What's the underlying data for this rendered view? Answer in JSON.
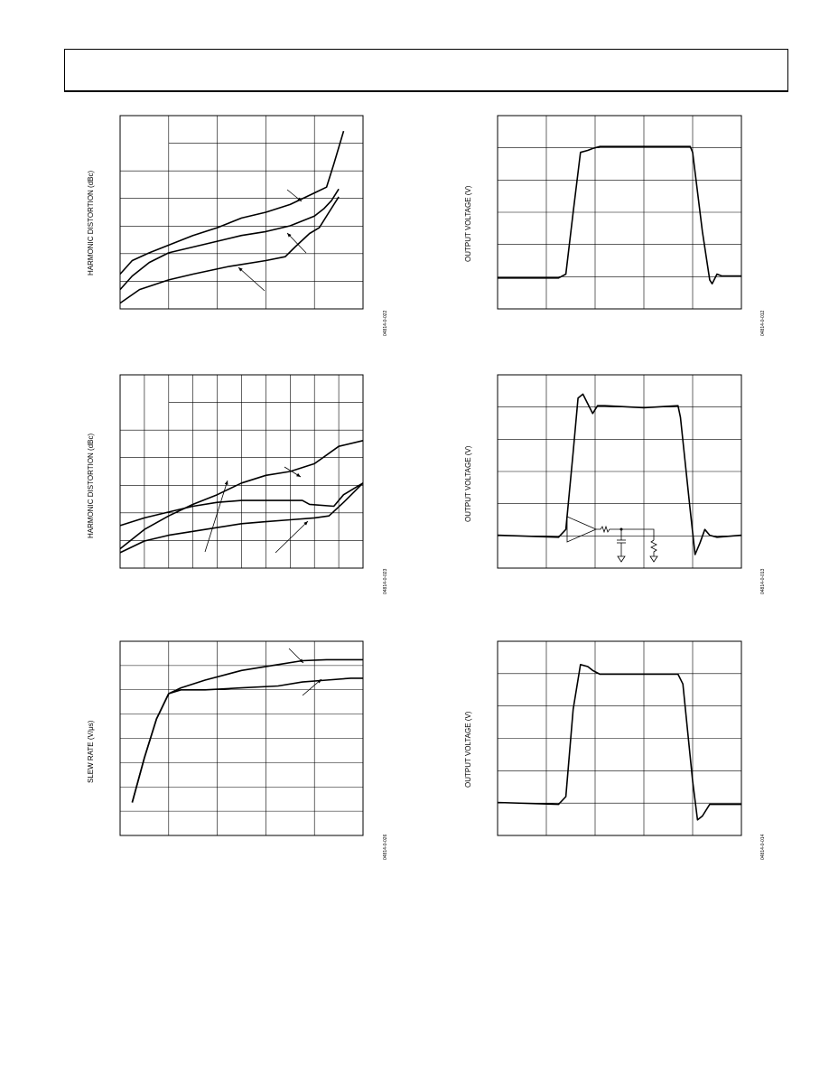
{
  "page": {
    "header": ""
  },
  "chart_data": [
    {
      "id": "harmonic-distortion-1",
      "type": "line",
      "ylabel": "HARMONIC DISTORTION (dBc)",
      "figure_id": "04814-0-022",
      "grid": true,
      "series": [
        {
          "values": [
            [
              0.0,
              0.82
            ],
            [
              0.05,
              0.75
            ],
            [
              0.12,
              0.71
            ],
            [
              0.2,
              0.67
            ],
            [
              0.3,
              0.62
            ],
            [
              0.4,
              0.58
            ],
            [
              0.5,
              0.53
            ],
            [
              0.6,
              0.5
            ],
            [
              0.7,
              0.46
            ],
            [
              0.8,
              0.4
            ],
            [
              0.85,
              0.37
            ],
            [
              0.88,
              0.25
            ],
            [
              0.92,
              0.08
            ]
          ]
        },
        {
          "values": [
            [
              0.0,
              0.9
            ],
            [
              0.05,
              0.83
            ],
            [
              0.12,
              0.76
            ],
            [
              0.2,
              0.71
            ],
            [
              0.3,
              0.68
            ],
            [
              0.4,
              0.65
            ],
            [
              0.5,
              0.62
            ],
            [
              0.6,
              0.6
            ],
            [
              0.7,
              0.57
            ],
            [
              0.8,
              0.52
            ],
            [
              0.84,
              0.48
            ],
            [
              0.87,
              0.44
            ],
            [
              0.9,
              0.38
            ]
          ]
        },
        {
          "values": [
            [
              0.0,
              0.97
            ],
            [
              0.08,
              0.9
            ],
            [
              0.2,
              0.85
            ],
            [
              0.3,
              0.82
            ],
            [
              0.45,
              0.78
            ],
            [
              0.6,
              0.75
            ],
            [
              0.68,
              0.73
            ],
            [
              0.72,
              0.68
            ],
            [
              0.78,
              0.61
            ],
            [
              0.82,
              0.58
            ],
            [
              0.86,
              0.5
            ],
            [
              0.9,
              0.42
            ]
          ]
        }
      ]
    },
    {
      "id": "harmonic-distortion-2",
      "type": "line",
      "ylabel": "HARMONIC DISTORTION (dBc)",
      "figure_id": "04814-0-023",
      "grid": true,
      "series": [
        {
          "values": [
            [
              0.0,
              0.9
            ],
            [
              0.1,
              0.8
            ],
            [
              0.2,
              0.73
            ],
            [
              0.3,
              0.67
            ],
            [
              0.4,
              0.62
            ],
            [
              0.5,
              0.56
            ],
            [
              0.6,
              0.52
            ],
            [
              0.7,
              0.5
            ],
            [
              0.8,
              0.46
            ],
            [
              0.9,
              0.37
            ],
            [
              1.0,
              0.34
            ]
          ]
        },
        {
          "values": [
            [
              0.0,
              0.78
            ],
            [
              0.1,
              0.74
            ],
            [
              0.2,
              0.71
            ],
            [
              0.3,
              0.68
            ],
            [
              0.4,
              0.66
            ],
            [
              0.5,
              0.65
            ],
            [
              0.6,
              0.65
            ],
            [
              0.65,
              0.65
            ],
            [
              0.75,
              0.65
            ],
            [
              0.78,
              0.67
            ],
            [
              0.88,
              0.68
            ],
            [
              0.92,
              0.62
            ],
            [
              1.0,
              0.56
            ]
          ]
        },
        {
          "values": [
            [
              0.0,
              0.92
            ],
            [
              0.1,
              0.86
            ],
            [
              0.2,
              0.83
            ],
            [
              0.3,
              0.81
            ],
            [
              0.4,
              0.79
            ],
            [
              0.5,
              0.77
            ],
            [
              0.6,
              0.76
            ],
            [
              0.7,
              0.75
            ],
            [
              0.8,
              0.74
            ],
            [
              0.86,
              0.73
            ],
            [
              0.92,
              0.66
            ],
            [
              1.0,
              0.56
            ]
          ]
        }
      ]
    },
    {
      "id": "slew-rate",
      "type": "line",
      "ylabel": "SLEW RATE (V/μs)",
      "figure_id": "04814-0-026",
      "grid": true,
      "series": [
        {
          "values": [
            [
              0.05,
              0.83
            ],
            [
              0.1,
              0.6
            ],
            [
              0.15,
              0.4
            ],
            [
              0.2,
              0.27
            ],
            [
              0.25,
              0.24
            ],
            [
              0.35,
              0.2
            ],
            [
              0.5,
              0.15
            ],
            [
              0.65,
              0.12
            ],
            [
              0.75,
              0.1
            ],
            [
              0.85,
              0.095
            ],
            [
              0.95,
              0.095
            ],
            [
              1.0,
              0.095
            ]
          ]
        },
        {
          "values": [
            [
              0.05,
              0.83
            ],
            [
              0.1,
              0.6
            ],
            [
              0.15,
              0.4
            ],
            [
              0.2,
              0.27
            ],
            [
              0.25,
              0.25
            ],
            [
              0.35,
              0.25
            ],
            [
              0.5,
              0.24
            ],
            [
              0.65,
              0.23
            ],
            [
              0.75,
              0.21
            ],
            [
              0.85,
              0.2
            ],
            [
              0.95,
              0.19
            ],
            [
              1.0,
              0.19
            ]
          ]
        }
      ]
    },
    {
      "id": "output-voltage-1",
      "type": "line",
      "ylabel": "OUTPUT VOLTAGE (V)",
      "figure_id": "04814-0-012",
      "grid": true,
      "series": [
        {
          "values": [
            [
              0.0,
              0.84
            ],
            [
              0.25,
              0.84
            ],
            [
              0.28,
              0.82
            ],
            [
              0.31,
              0.5
            ],
            [
              0.34,
              0.19
            ],
            [
              0.37,
              0.18
            ],
            [
              0.39,
              0.17
            ],
            [
              0.42,
              0.16
            ],
            [
              0.6,
              0.16
            ],
            [
              0.79,
              0.16
            ],
            [
              0.8,
              0.19
            ],
            [
              0.84,
              0.6
            ],
            [
              0.87,
              0.85
            ],
            [
              0.88,
              0.87
            ],
            [
              0.9,
              0.82
            ],
            [
              0.92,
              0.83
            ],
            [
              1.0,
              0.83
            ]
          ]
        }
      ]
    },
    {
      "id": "output-voltage-2",
      "type": "line",
      "ylabel": "OUTPUT VOLTAGE (V)",
      "figure_id": "04814-0-013",
      "grid": true,
      "series": [
        {
          "values": [
            [
              0.0,
              0.83
            ],
            [
              0.25,
              0.84
            ],
            [
              0.28,
              0.8
            ],
            [
              0.31,
              0.4
            ],
            [
              0.33,
              0.12
            ],
            [
              0.35,
              0.1
            ],
            [
              0.37,
              0.15
            ],
            [
              0.39,
              0.2
            ],
            [
              0.41,
              0.16
            ],
            [
              0.44,
              0.16
            ],
            [
              0.6,
              0.17
            ],
            [
              0.74,
              0.16
            ],
            [
              0.75,
              0.22
            ],
            [
              0.79,
              0.7
            ],
            [
              0.81,
              0.93
            ],
            [
              0.83,
              0.87
            ],
            [
              0.85,
              0.8
            ],
            [
              0.87,
              0.83
            ],
            [
              0.9,
              0.84
            ],
            [
              1.0,
              0.83
            ]
          ]
        }
      ]
    },
    {
      "id": "output-voltage-3",
      "type": "line",
      "ylabel": "OUTPUT VOLTAGE (V)",
      "figure_id": "04814-0-014",
      "grid": true,
      "series": [
        {
          "values": [
            [
              0.0,
              0.83
            ],
            [
              0.25,
              0.84
            ],
            [
              0.28,
              0.8
            ],
            [
              0.31,
              0.35
            ],
            [
              0.34,
              0.12
            ],
            [
              0.37,
              0.13
            ],
            [
              0.39,
              0.15
            ],
            [
              0.42,
              0.17
            ],
            [
              0.6,
              0.17
            ],
            [
              0.74,
              0.17
            ],
            [
              0.76,
              0.22
            ],
            [
              0.8,
              0.72
            ],
            [
              0.82,
              0.92
            ],
            [
              0.84,
              0.9
            ],
            [
              0.87,
              0.84
            ],
            [
              0.9,
              0.84
            ],
            [
              1.0,
              0.84
            ]
          ]
        }
      ]
    }
  ]
}
